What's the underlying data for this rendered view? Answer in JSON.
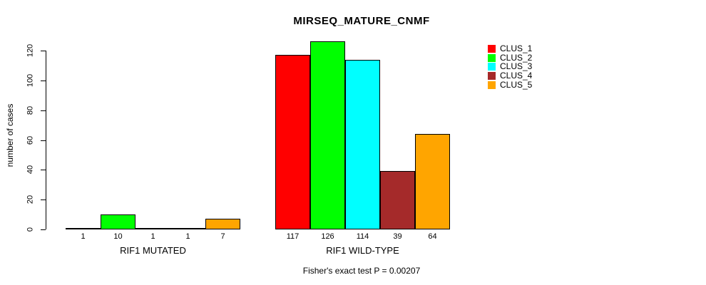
{
  "chart_data": {
    "type": "bar",
    "title": "MIRSEQ_MATURE_CNMF",
    "ylabel": "number of cases",
    "xlabel": "",
    "annotation": "Fisher's exact test P = 0.00207",
    "ylim": [
      0,
      130
    ],
    "yticks": [
      0,
      20,
      40,
      60,
      80,
      100,
      120
    ],
    "grid": false,
    "legend_position": "right",
    "bar_value_labels": true,
    "colors": {
      "background": "#ffffff",
      "axis": "#000000",
      "bar_border": "#000000"
    },
    "series": [
      {
        "name": "CLUS_1",
        "color": "#ff0000"
      },
      {
        "name": "CLUS_2",
        "color": "#00ff00"
      },
      {
        "name": "CLUS_3",
        "color": "#00ffff"
      },
      {
        "name": "CLUS_4",
        "color": "#a52a2a"
      },
      {
        "name": "CLUS_5",
        "color": "#ffa500"
      }
    ],
    "groups": [
      {
        "label": "RIF1 MUTATED",
        "values": [
          1,
          10,
          1,
          1,
          7
        ]
      },
      {
        "label": "RIF1 WILD-TYPE",
        "values": [
          117,
          126,
          114,
          39,
          64
        ]
      }
    ]
  }
}
